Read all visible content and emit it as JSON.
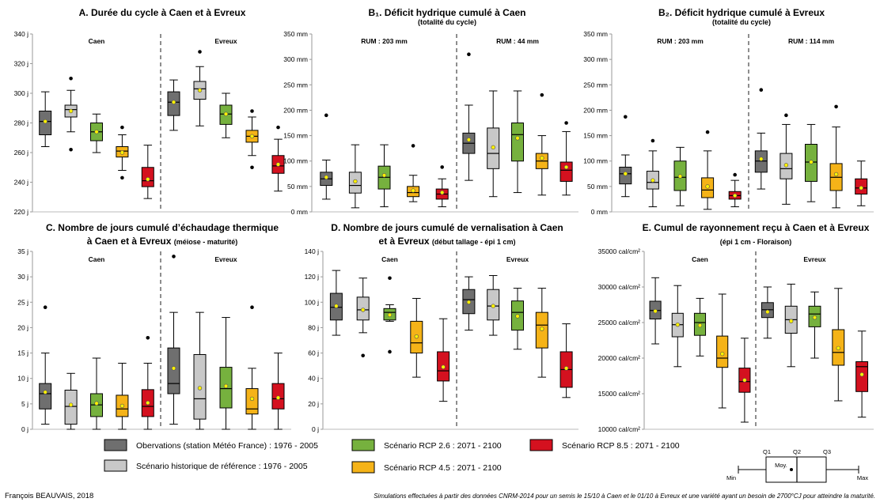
{
  "scenarios": [
    {
      "id": "obs",
      "label": "Obervations (station Météo France) : 1976 - 2005",
      "color": "#6f6f6f"
    },
    {
      "id": "hist",
      "label": "Scénario historique de référence : 1976 - 2005",
      "color": "#c8c8c8"
    },
    {
      "id": "rcp26",
      "label": "Scénario RCP 2.6 : 2071 - 2100",
      "color": "#76b13e"
    },
    {
      "id": "rcp45",
      "label": "Scénario RCP 4.5 : 2071 - 2100",
      "color": "#f5b318"
    },
    {
      "id": "rcp85",
      "label": "Scénario RCP 8.5 : 2071 - 2100",
      "color": "#d4111f"
    }
  ],
  "key": {
    "q1": "Q1",
    "q2": "Q2",
    "q3": "Q3",
    "mean": "Moy.",
    "min": "Min",
    "max": "Max"
  },
  "footer": {
    "author": "François BEAUVAIS, 2018",
    "note": "Simulations effectuées à partir des données CNRM-2014 pour un semis le 15/10 à Caen et le 01/10 à Evreux et une variété ayant un besoin de 2700°CJ pour atteindre la maturité."
  },
  "chart_data": [
    {
      "id": "A",
      "type": "box",
      "title": "A. Durée du cycle à Caen et à Evreux",
      "subtitle": "",
      "yticks": [
        "220 j",
        "240 j",
        "260 j",
        "280 j",
        "300 j",
        "320 j",
        "340 j"
      ],
      "ylim": [
        220,
        340
      ],
      "regions": [
        {
          "label": "Caen"
        },
        {
          "label": "Evreux"
        }
      ],
      "boxes": [
        [
          {
            "min": 264,
            "q1": 272,
            "med": 281,
            "q3": 288,
            "max": 301,
            "mean": 281,
            "out": []
          },
          {
            "min": 274,
            "q1": 284,
            "med": 289,
            "q3": 292,
            "max": 302,
            "mean": 288,
            "out": [
              310,
              262
            ]
          },
          {
            "min": 260,
            "q1": 268,
            "med": 274,
            "q3": 280,
            "max": 286,
            "mean": 274,
            "out": []
          },
          {
            "min": 248,
            "q1": 257,
            "med": 261,
            "q3": 264,
            "max": 272,
            "mean": 260,
            "out": [
              277,
              243
            ]
          },
          {
            "min": 229,
            "q1": 237,
            "med": 241,
            "q3": 250,
            "max": 265,
            "mean": 242,
            "out": []
          }
        ],
        [
          {
            "min": 275,
            "q1": 285,
            "med": 294,
            "q3": 301,
            "max": 309,
            "mean": 294,
            "out": []
          },
          {
            "min": 278,
            "q1": 296,
            "med": 303,
            "q3": 308,
            "max": 318,
            "mean": 302,
            "out": [
              328
            ]
          },
          {
            "min": 270,
            "q1": 279,
            "med": 286,
            "q3": 292,
            "max": 300,
            "mean": 286,
            "out": []
          },
          {
            "min": 258,
            "q1": 267,
            "med": 271,
            "q3": 275,
            "max": 284,
            "mean": 271,
            "out": [
              288,
              250
            ]
          },
          {
            "min": 234,
            "q1": 246,
            "med": 251,
            "q3": 258,
            "max": 269,
            "mean": 252,
            "out": [
              277
            ]
          }
        ]
      ]
    },
    {
      "id": "B1",
      "type": "box",
      "title": "B₁. Déficit hydrique cumulé à Caen",
      "subtitle": "(totalité du cycle)",
      "yticks": [
        "0 mm",
        "50 mm",
        "100 mm",
        "150 mm",
        "200 mm",
        "250 mm",
        "300 mm",
        "350 mm"
      ],
      "ylim": [
        0,
        350
      ],
      "regions": [
        {
          "label": "RUM : 203 mm"
        },
        {
          "label": "RUM : 44 mm"
        }
      ],
      "boxes": [
        [
          {
            "min": 25,
            "q1": 52,
            "med": 65,
            "q3": 78,
            "max": 102,
            "mean": 68,
            "out": [
              190
            ]
          },
          {
            "min": 8,
            "q1": 37,
            "med": 52,
            "q3": 78,
            "max": 132,
            "mean": 60,
            "out": []
          },
          {
            "min": 10,
            "q1": 45,
            "med": 68,
            "q3": 90,
            "max": 132,
            "mean": 72,
            "out": []
          },
          {
            "min": 20,
            "q1": 30,
            "med": 38,
            "q3": 50,
            "max": 72,
            "mean": 42,
            "out": [
              130
            ]
          },
          {
            "min": 10,
            "q1": 25,
            "med": 35,
            "q3": 45,
            "max": 65,
            "mean": 38,
            "out": [
              88
            ]
          }
        ],
        [
          {
            "min": 62,
            "q1": 115,
            "med": 135,
            "q3": 155,
            "max": 210,
            "mean": 142,
            "out": [
              310
            ]
          },
          {
            "min": 30,
            "q1": 85,
            "med": 115,
            "q3": 165,
            "max": 238,
            "mean": 127,
            "out": []
          },
          {
            "min": 38,
            "q1": 100,
            "med": 152,
            "q3": 175,
            "max": 238,
            "mean": 145,
            "out": []
          },
          {
            "min": 33,
            "q1": 85,
            "med": 100,
            "q3": 115,
            "max": 150,
            "mean": 106,
            "out": [
              230
            ]
          },
          {
            "min": 33,
            "q1": 60,
            "med": 82,
            "q3": 98,
            "max": 158,
            "mean": 88,
            "out": [
              175
            ]
          }
        ]
      ]
    },
    {
      "id": "B2",
      "type": "box",
      "title": "B₂. Déficit hydrique cumulé à Evreux",
      "subtitle": "(totalité du cycle)",
      "yticks": [
        "0 mm",
        "50 mm",
        "100 mm",
        "150 mm",
        "200 mm",
        "250 mm",
        "300 mm",
        "350 mm"
      ],
      "ylim": [
        0,
        350
      ],
      "regions": [
        {
          "label": "RUM : 203 mm"
        },
        {
          "label": "RUM : 114 mm"
        }
      ],
      "boxes": [
        [
          {
            "min": 30,
            "q1": 55,
            "med": 75,
            "q3": 88,
            "max": 112,
            "mean": 75,
            "out": [
              187
            ]
          },
          {
            "min": 10,
            "q1": 45,
            "med": 58,
            "q3": 80,
            "max": 120,
            "mean": 62,
            "out": [
              140
            ]
          },
          {
            "min": 12,
            "q1": 42,
            "med": 68,
            "q3": 100,
            "max": 127,
            "mean": 70,
            "out": []
          },
          {
            "min": 5,
            "q1": 28,
            "med": 43,
            "q3": 67,
            "max": 120,
            "mean": 50,
            "out": [
              157
            ]
          },
          {
            "min": 10,
            "q1": 25,
            "med": 32,
            "q3": 40,
            "max": 62,
            "mean": 32,
            "out": [
              73
            ]
          }
        ],
        [
          {
            "min": 45,
            "q1": 78,
            "med": 100,
            "q3": 120,
            "max": 155,
            "mean": 104,
            "out": [
              240
            ]
          },
          {
            "min": 15,
            "q1": 65,
            "med": 85,
            "q3": 115,
            "max": 172,
            "mean": 92,
            "out": [
              190
            ]
          },
          {
            "min": 20,
            "q1": 60,
            "med": 98,
            "q3": 133,
            "max": 172,
            "mean": 98,
            "out": []
          },
          {
            "min": 8,
            "q1": 42,
            "med": 68,
            "q3": 95,
            "max": 167,
            "mean": 74,
            "out": [
              207
            ]
          },
          {
            "min": 12,
            "q1": 35,
            "med": 47,
            "q3": 65,
            "max": 100,
            "mean": 47,
            "out": []
          }
        ]
      ]
    },
    {
      "id": "C",
      "type": "box",
      "title": "C. Nombre de jours cumulé d’échaudage thermique",
      "title2": "à Caen et à Evreux",
      "title2_small": "(méiose - maturité)",
      "subtitle": "",
      "yticks": [
        "0 j",
        "5 j",
        "10 j",
        "15 j",
        "20 j",
        "25 j",
        "30 j",
        "35 j"
      ],
      "ylim": [
        0,
        35
      ],
      "regions": [
        {
          "label": "Caen"
        },
        {
          "label": "Evreux"
        }
      ],
      "boxes": [
        [
          {
            "min": 1,
            "q1": 4,
            "med": 7,
            "q3": 9,
            "max": 15,
            "mean": 7.3,
            "out": [
              24
            ]
          },
          {
            "min": 0,
            "q1": 1,
            "med": 4.5,
            "q3": 7.7,
            "max": 11,
            "mean": 4.8,
            "out": []
          },
          {
            "min": 0,
            "q1": 2.5,
            "med": 4.8,
            "q3": 7,
            "max": 14,
            "mean": 5.1,
            "out": []
          },
          {
            "min": 0,
            "q1": 2.5,
            "med": 4,
            "q3": 6.7,
            "max": 13,
            "mean": 4.6,
            "out": []
          },
          {
            "min": 0,
            "q1": 2.5,
            "med": 4.5,
            "q3": 7.8,
            "max": 13,
            "mean": 5.2,
            "out": [
              18
            ]
          }
        ],
        [
          {
            "min": 1,
            "q1": 7,
            "med": 9,
            "q3": 16,
            "max": 23,
            "mean": 12,
            "out": [
              34
            ]
          },
          {
            "min": 0,
            "q1": 2,
            "med": 6,
            "q3": 14.7,
            "max": 23,
            "mean": 8.1,
            "out": []
          },
          {
            "min": 0,
            "q1": 4.2,
            "med": 8,
            "q3": 12.2,
            "max": 22,
            "mean": 8.5,
            "out": []
          },
          {
            "min": 0,
            "q1": 3,
            "med": 4,
            "q3": 8,
            "max": 12,
            "mean": 6,
            "out": [
              24
            ]
          },
          {
            "min": 0,
            "q1": 4,
            "med": 6,
            "q3": 9,
            "max": 15,
            "mean": 6.2,
            "out": []
          }
        ]
      ]
    },
    {
      "id": "D",
      "type": "box",
      "title": "D. Nombre de jours cumulé de vernalisation à Caen",
      "title2": "et à Evreux",
      "title2_small": "(début tallage - épi 1 cm)",
      "subtitle": "",
      "yticks": [
        "0 j",
        "20 j",
        "40 j",
        "60 j",
        "80 j",
        "100 j",
        "120 j",
        "140 j"
      ],
      "ylim": [
        0,
        140
      ],
      "regions": [
        {
          "label": "Caen"
        },
        {
          "label": "Evreux"
        }
      ],
      "boxes": [
        [
          {
            "min": 74,
            "q1": 86,
            "med": 96,
            "q3": 107,
            "max": 125,
            "mean": 97,
            "out": []
          },
          {
            "min": 76,
            "q1": 86,
            "med": 94,
            "q3": 104,
            "max": 119,
            "mean": 94,
            "out": [
              58
            ]
          },
          {
            "min": 85,
            "q1": 86,
            "med": 92,
            "q3": 95,
            "max": 98,
            "mean": 90,
            "out": [
              119,
              61
            ]
          },
          {
            "min": 41,
            "q1": 60,
            "med": 68,
            "q3": 85,
            "max": 103,
            "mean": 73,
            "out": []
          },
          {
            "min": 22,
            "q1": 38,
            "med": 46,
            "q3": 61,
            "max": 87,
            "mean": 49,
            "out": []
          }
        ],
        [
          {
            "min": 78,
            "q1": 91,
            "med": 102,
            "q3": 110,
            "max": 120,
            "mean": 100,
            "out": []
          },
          {
            "min": 74,
            "q1": 86,
            "med": 97,
            "q3": 110,
            "max": 121,
            "mean": 97,
            "out": []
          },
          {
            "min": 63,
            "q1": 78,
            "med": 92,
            "q3": 101,
            "max": 111,
            "mean": 89,
            "out": []
          },
          {
            "min": 41,
            "q1": 64,
            "med": 82,
            "q3": 92,
            "max": 111,
            "mean": 79,
            "out": []
          },
          {
            "min": 25,
            "q1": 33,
            "med": 47,
            "q3": 61,
            "max": 83,
            "mean": 48,
            "out": []
          }
        ]
      ]
    },
    {
      "id": "E",
      "type": "box",
      "title": "E. Cumul de rayonnement reçu à Caen et à Evreux",
      "subtitle": "(épi 1 cm - Floraison)",
      "yticks": [
        "10000 cal/cm²",
        "15000 cal/cm²",
        "20000 cal/cm²",
        "25000 cal/cm²",
        "30000 cal/cm²",
        "35000 cal/cm²"
      ],
      "ylim": [
        10000,
        35000
      ],
      "regions": [
        {
          "label": "Caen"
        },
        {
          "label": "Evreux"
        }
      ],
      "boxes": [
        [
          {
            "min": 22000,
            "q1": 25500,
            "med": 26700,
            "q3": 28000,
            "max": 31300,
            "mean": 26600,
            "out": []
          },
          {
            "min": 18800,
            "q1": 23000,
            "med": 24700,
            "q3": 26300,
            "max": 30200,
            "mean": 24700,
            "out": []
          },
          {
            "min": 20300,
            "q1": 23200,
            "med": 25000,
            "q3": 26300,
            "max": 28400,
            "mean": 24600,
            "out": []
          },
          {
            "min": 13000,
            "q1": 18700,
            "med": 20000,
            "q3": 23100,
            "max": 29000,
            "mean": 20600,
            "out": []
          },
          {
            "min": 11000,
            "q1": 15200,
            "med": 16700,
            "q3": 18600,
            "max": 22800,
            "mean": 16900,
            "out": []
          }
        ],
        [
          {
            "min": 22800,
            "q1": 25700,
            "med": 26800,
            "q3": 27800,
            "max": 30000,
            "mean": 26500,
            "out": []
          },
          {
            "min": 18800,
            "q1": 23500,
            "med": 25400,
            "q3": 27300,
            "max": 30400,
            "mean": 25200,
            "out": []
          },
          {
            "min": 20000,
            "q1": 24400,
            "med": 26200,
            "q3": 27300,
            "max": 29300,
            "mean": 25700,
            "out": []
          },
          {
            "min": 14000,
            "q1": 19000,
            "med": 20800,
            "q3": 24000,
            "max": 29800,
            "mean": 21400,
            "out": []
          },
          {
            "min": 11700,
            "q1": 15300,
            "med": 18800,
            "q3": 19500,
            "max": 23800,
            "mean": 17700,
            "out": []
          }
        ]
      ]
    }
  ]
}
